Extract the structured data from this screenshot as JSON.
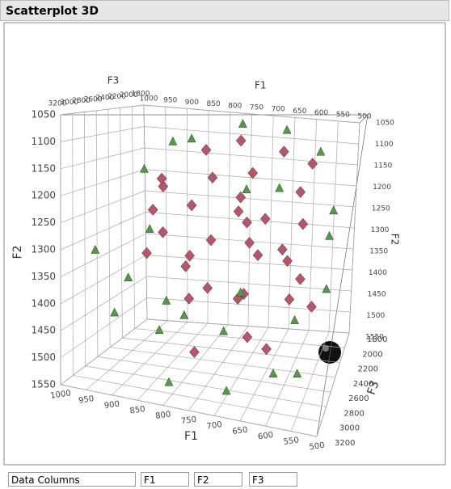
{
  "chart_data": {
    "type": "scatter3d",
    "title": "Scatterplot 3D",
    "x_label": "F1",
    "y_label": "F2",
    "z_label": "F3",
    "xlim": [
      1000,
      500
    ],
    "ylim": [
      1050,
      1550
    ],
    "zlim": [
      1800,
      3200
    ],
    "xticks": [
      1000,
      950,
      900,
      850,
      800,
      750,
      700,
      650,
      600,
      550,
      500
    ],
    "yticks": [
      1050,
      1100,
      1150,
      1200,
      1250,
      1300,
      1350,
      1400,
      1450,
      1500,
      1550
    ],
    "zticks": [
      1800,
      2000,
      2200,
      2400,
      2600,
      2800,
      3000,
      3200
    ],
    "grid": true,
    "series": [
      {
        "marker": "diamond",
        "color": "#b5566b",
        "x": [
          820,
          760,
          700,
          650,
          880,
          800,
          740,
          690,
          620,
          860,
          780,
          720,
          660,
          600,
          840,
          760,
          700,
          640,
          580,
          900,
          820,
          740,
          680,
          620,
          560,
          880,
          790,
          710,
          630,
          920,
          770,
          650,
          850,
          600,
          700
        ],
        "y": [
          1130,
          1110,
          1160,
          1120,
          1200,
          1220,
          1250,
          1240,
          1210,
          1280,
          1300,
          1320,
          1290,
          1260,
          1350,
          1370,
          1390,
          1360,
          1330,
          1330,
          1420,
          1440,
          1460,
          1420,
          1400,
          1400,
          1180,
          1200,
          1300,
          1260,
          1480,
          1500,
          1170,
          1150,
          1280
        ],
        "z": [
          2200,
          2000,
          2600,
          2400,
          2500,
          2800,
          2300,
          2900,
          2100,
          2700,
          2500,
          2200,
          3000,
          2400,
          2300,
          2800,
          2600,
          2100,
          2900,
          2600,
          2500,
          2200,
          2700,
          2300,
          2600,
          2000,
          2400,
          2800,
          2600,
          2300,
          2900,
          2500,
          2900,
          2000,
          2000
        ]
      },
      {
        "marker": "triangle",
        "color": "#4f9e3f",
        "x": [
          950,
          980,
          920,
          870,
          800,
          700,
          620,
          560,
          530,
          540,
          580,
          660,
          740,
          820,
          900,
          960,
          780,
          680,
          600,
          860,
          720,
          640,
          900,
          550,
          760
        ],
        "y": [
          1180,
          1320,
          1420,
          1480,
          1520,
          1540,
          1520,
          1480,
          1350,
          1230,
          1120,
          1080,
          1070,
          1100,
          1120,
          1400,
          1400,
          1350,
          1450,
          1260,
          1200,
          1180,
          1460,
          1300,
          1500
        ],
        "z": [
          2200,
          2800,
          3000,
          2600,
          3100,
          2900,
          2700,
          3000,
          2800,
          2400,
          2200,
          2000,
          2300,
          2600,
          2100,
          2400,
          3100,
          3100,
          2400,
          3000,
          2400,
          2800,
          2200,
          2100,
          2300
        ]
      }
    ]
  },
  "controls": {
    "label": "Data Columns",
    "columns": [
      "F1",
      "F2",
      "F3"
    ]
  }
}
